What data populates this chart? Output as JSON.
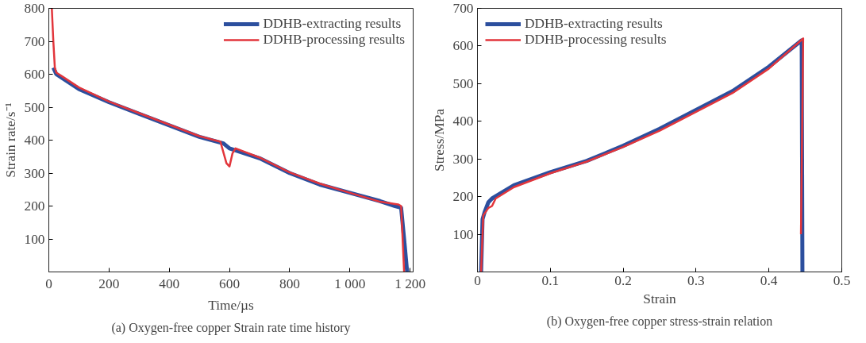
{
  "chart_data": [
    {
      "type": "line",
      "xlabel": "Time/µs",
      "ylabel": "Strain rate/s⁻¹",
      "xlim": [
        0,
        1210
      ],
      "ylim": [
        0,
        800
      ],
      "xticks": [
        0,
        200,
        400,
        600,
        800,
        {
          "value": 1000,
          "label": "1 000"
        },
        {
          "value": 1200,
          "label": "1 200"
        }
      ],
      "yticks": [
        100,
        200,
        300,
        400,
        500,
        600,
        700,
        800
      ],
      "grid": false,
      "legend": "top right",
      "annotations": [
        "(a) Oxygen-free copper Strain rate time history"
      ],
      "series": [
        {
          "name": "DDHB-extracting results",
          "color": "#2c4f9e",
          "x": [
            15,
            25,
            50,
            100,
            200,
            300,
            400,
            500,
            580,
            600,
            650,
            700,
            800,
            900,
            1000,
            1100,
            1150,
            1170,
            1180,
            1190
          ],
          "values": [
            620,
            600,
            585,
            555,
            515,
            480,
            445,
            410,
            390,
            375,
            360,
            345,
            300,
            265,
            240,
            215,
            200,
            195,
            100,
            0
          ]
        },
        {
          "name": "DDHB-processing results",
          "color": "#e2353b",
          "x": [
            10,
            15,
            20,
            25,
            50,
            100,
            200,
            300,
            400,
            500,
            570,
            590,
            600,
            610,
            620,
            700,
            800,
            900,
            1000,
            1100,
            1160,
            1170,
            1180
          ],
          "values": [
            800,
            700,
            620,
            605,
            590,
            560,
            517,
            482,
            447,
            412,
            395,
            330,
            320,
            360,
            375,
            347,
            302,
            268,
            240,
            213,
            205,
            200,
            0
          ]
        }
      ]
    },
    {
      "type": "line",
      "xlabel": "Strain",
      "ylabel": "Stress/MPa",
      "xlim": [
        0,
        0.5
      ],
      "ylim": [
        0,
        700
      ],
      "xticks": [
        0,
        0.1,
        0.2,
        0.3,
        0.4,
        0.5
      ],
      "yticks": [
        100,
        200,
        300,
        400,
        500,
        600,
        700
      ],
      "grid": false,
      "legend": "top left",
      "annotations": [
        "(b) Oxygen-free copper stress-strain relation"
      ],
      "series": [
        {
          "name": "DDHB-extracting results",
          "color": "#2c4f9e",
          "x": [
            0.005,
            0.007,
            0.01,
            0.015,
            0.02,
            0.05,
            0.1,
            0.15,
            0.2,
            0.25,
            0.3,
            0.35,
            0.4,
            0.445,
            0.446
          ],
          "values": [
            0,
            140,
            160,
            185,
            195,
            230,
            265,
            295,
            335,
            380,
            430,
            480,
            545,
            615,
            0
          ]
        },
        {
          "name": "DDHB-processing results",
          "color": "#e2353b",
          "x": [
            0.005,
            0.008,
            0.015,
            0.02,
            0.025,
            0.05,
            0.1,
            0.15,
            0.2,
            0.25,
            0.3,
            0.35,
            0.4,
            0.447,
            0.444
          ],
          "values": [
            0,
            150,
            170,
            175,
            195,
            225,
            262,
            293,
            332,
            375,
            425,
            475,
            540,
            620,
            100
          ]
        }
      ]
    }
  ]
}
